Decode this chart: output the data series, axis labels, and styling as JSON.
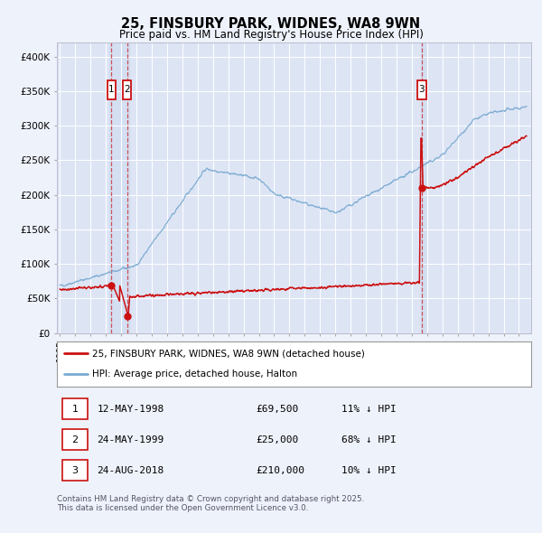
{
  "title": "25, FINSBURY PARK, WIDNES, WA8 9WN",
  "subtitle": "Price paid vs. HM Land Registry's House Price Index (HPI)",
  "background_color": "#eef2fb",
  "plot_bg_color": "#dde5f5",
  "grid_color": "#ffffff",
  "hpi_color": "#7aaad0",
  "price_color": "#cc1111",
  "ylim": [
    0,
    420000
  ],
  "yticks": [
    0,
    50000,
    100000,
    150000,
    200000,
    250000,
    300000,
    350000,
    400000
  ],
  "ytick_labels": [
    "£0",
    "£50K",
    "£100K",
    "£150K",
    "£200K",
    "£250K",
    "£300K",
    "£350K",
    "£400K"
  ],
  "xlim_start": 1994.8,
  "xlim_end": 2025.8,
  "sale1_date": 1998.37,
  "sale1_price": 69500,
  "sale2_date": 1999.38,
  "sale2_price": 25000,
  "sale3_date": 2018.65,
  "sale3_price": 210000,
  "legend_line1": "25, FINSBURY PARK, WIDNES, WA8 9WN (detached house)",
  "legend_line2": "HPI: Average price, detached house, Halton",
  "table_rows": [
    [
      "1",
      "12-MAY-1998",
      "£69,500",
      "11% ↓ HPI"
    ],
    [
      "2",
      "24-MAY-1999",
      "£25,000",
      "68% ↓ HPI"
    ],
    [
      "3",
      "24-AUG-2018",
      "£210,000",
      "10% ↓ HPI"
    ]
  ],
  "footnote": "Contains HM Land Registry data © Crown copyright and database right 2025.\nThis data is licensed under the Open Government Licence v3.0."
}
